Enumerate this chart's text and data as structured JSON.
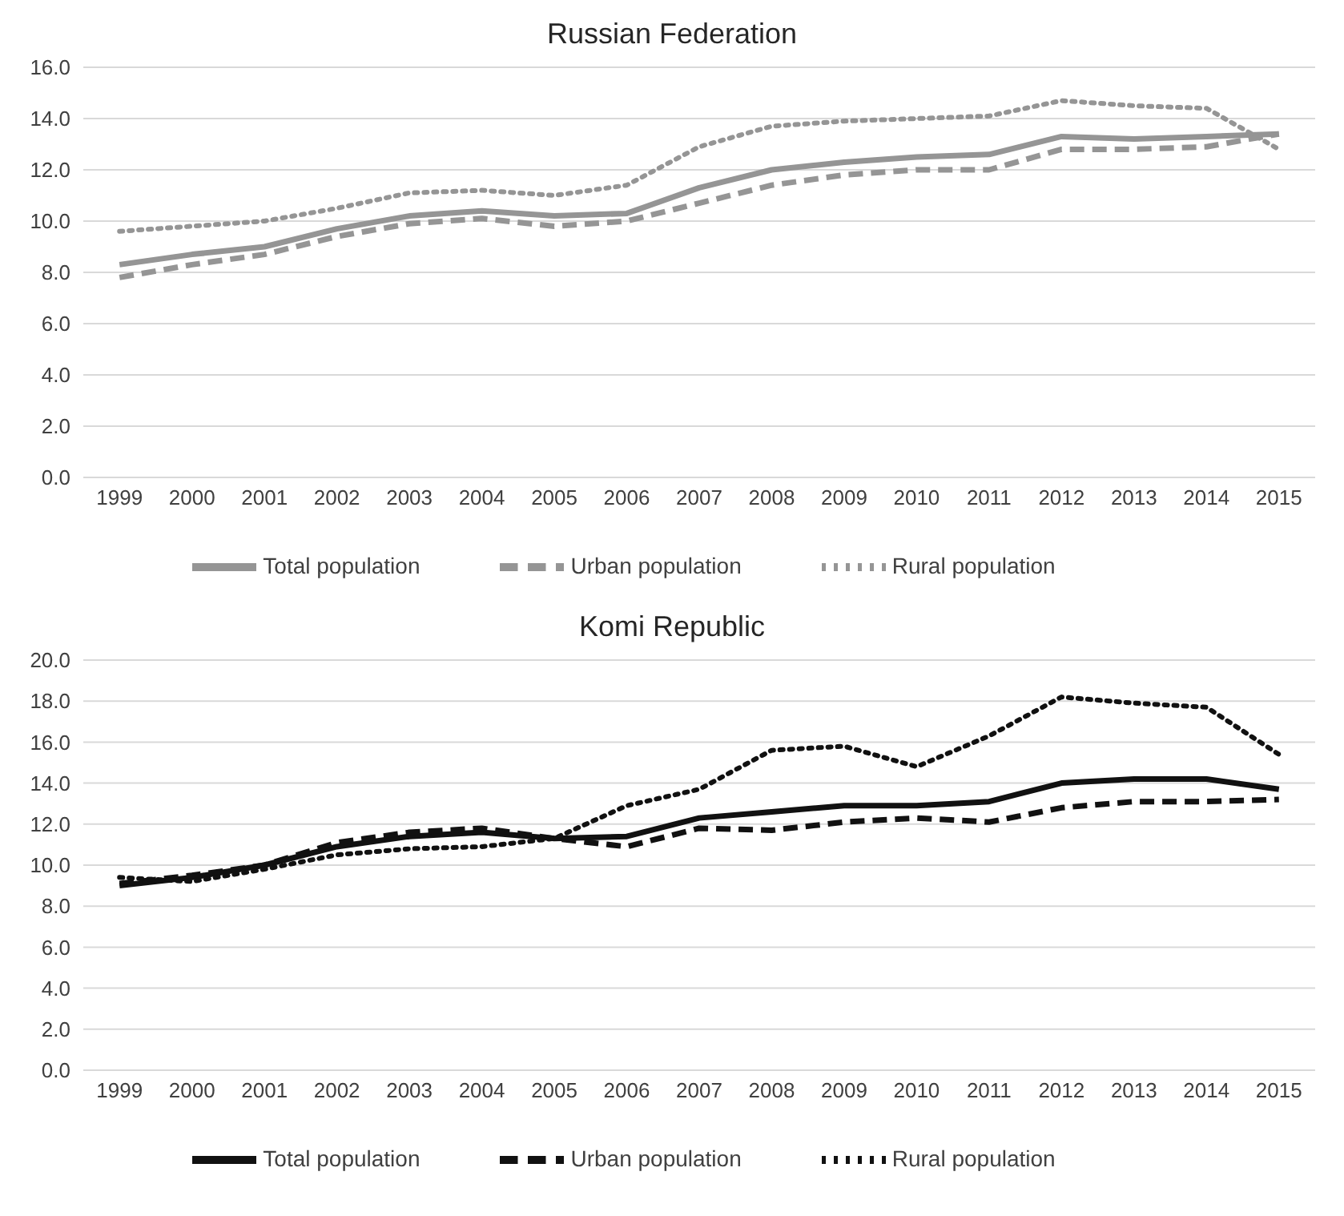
{
  "chart_data": [
    {
      "type": "line",
      "title": "Russian Federation",
      "categories": [
        "1999",
        "2000",
        "2001",
        "2002",
        "2003",
        "2004",
        "2005",
        "2006",
        "2007",
        "2008",
        "2009",
        "2010",
        "2011",
        "2012",
        "2013",
        "2014",
        "2015"
      ],
      "series": [
        {
          "name": "Total population",
          "color": "#959595",
          "line_style": "solid",
          "values": [
            8.3,
            8.7,
            9.0,
            9.7,
            10.2,
            10.4,
            10.2,
            10.3,
            11.3,
            12.0,
            12.3,
            12.5,
            12.6,
            13.3,
            13.2,
            13.3,
            13.4
          ]
        },
        {
          "name": "Urban population",
          "color": "#959595",
          "line_style": "dashed",
          "values": [
            7.8,
            8.3,
            8.7,
            9.4,
            9.9,
            10.1,
            9.8,
            10.0,
            10.7,
            11.4,
            11.8,
            12.0,
            12.0,
            12.8,
            12.8,
            12.9,
            13.4
          ]
        },
        {
          "name": "Rural population",
          "color": "#959595",
          "line_style": "dotted",
          "values": [
            9.6,
            9.8,
            10.0,
            10.5,
            11.1,
            11.2,
            11.0,
            11.4,
            12.9,
            13.7,
            13.9,
            14.0,
            14.1,
            14.7,
            14.5,
            14.4,
            12.8
          ]
        }
      ],
      "ylim": [
        0,
        16
      ],
      "yticks": [
        {
          "value": 0,
          "label": "0.0"
        },
        {
          "value": 2,
          "label": "2.0"
        },
        {
          "value": 4,
          "label": "4.0"
        },
        {
          "value": 6,
          "label": "6.0"
        },
        {
          "value": 8,
          "label": "8.0"
        },
        {
          "value": 10,
          "label": "10.0"
        },
        {
          "value": 12,
          "label": "12.0"
        },
        {
          "value": 14,
          "label": "14.0"
        },
        {
          "value": 16,
          "label": "16.0"
        }
      ],
      "grid": "y",
      "legend": "bottom",
      "marker": "none"
    },
    {
      "type": "line",
      "title": "Komi Republic",
      "categories": [
        "1999",
        "2000",
        "2001",
        "2002",
        "2003",
        "2004",
        "2005",
        "2006",
        "2007",
        "2008",
        "2009",
        "2010",
        "2011",
        "2012",
        "2013",
        "2014",
        "2015"
      ],
      "series": [
        {
          "name": "Total population",
          "color": "#111111",
          "line_style": "solid",
          "values": [
            9.0,
            9.4,
            10.0,
            10.9,
            11.4,
            11.6,
            11.3,
            11.4,
            12.3,
            12.6,
            12.9,
            12.9,
            13.1,
            14.0,
            14.2,
            14.2,
            13.7
          ]
        },
        {
          "name": "Urban population",
          "color": "#111111",
          "line_style": "dashed",
          "values": [
            9.1,
            9.5,
            10.0,
            11.1,
            11.6,
            11.8,
            11.3,
            10.9,
            11.8,
            11.7,
            12.1,
            12.3,
            12.1,
            12.8,
            13.1,
            13.1,
            13.2
          ]
        },
        {
          "name": "Rural population",
          "color": "#111111",
          "line_style": "dotted",
          "values": [
            9.4,
            9.2,
            9.8,
            10.5,
            10.8,
            10.9,
            11.3,
            12.9,
            13.7,
            15.6,
            15.8,
            14.8,
            16.3,
            18.2,
            17.9,
            17.7,
            15.4
          ]
        }
      ],
      "ylim": [
        0,
        20
      ],
      "yticks": [
        {
          "value": 0,
          "label": "0.0"
        },
        {
          "value": 2,
          "label": "2.0"
        },
        {
          "value": 4,
          "label": "4.0"
        },
        {
          "value": 6,
          "label": "6.0"
        },
        {
          "value": 8,
          "label": "8.0"
        },
        {
          "value": 10,
          "label": "10.0"
        },
        {
          "value": 12,
          "label": "12.0"
        },
        {
          "value": 14,
          "label": "14.0"
        },
        {
          "value": 16,
          "label": "16.0"
        },
        {
          "value": 18,
          "label": "18.0"
        },
        {
          "value": 20,
          "label": "20.0"
        }
      ],
      "grid": "y",
      "legend": "bottom",
      "marker": "none"
    }
  ]
}
